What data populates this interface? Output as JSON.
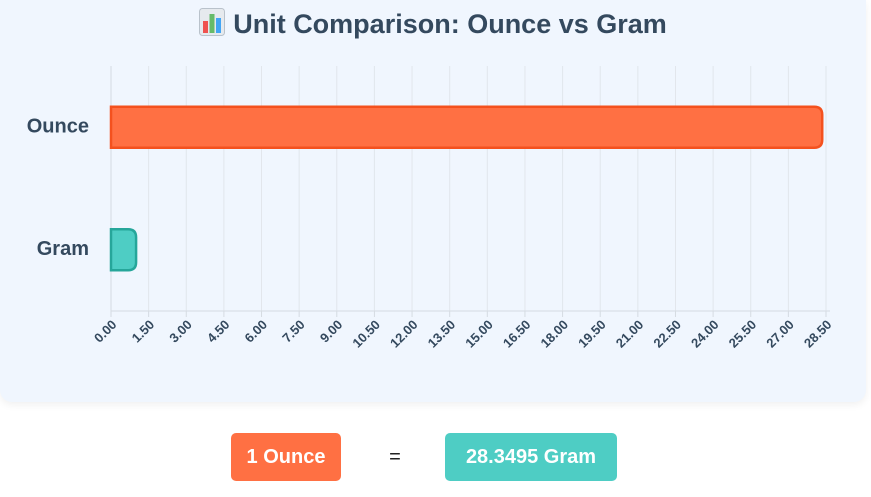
{
  "chart_data": {
    "type": "bar",
    "orientation": "horizontal",
    "title": "Unit Comparison: Ounce vs Gram",
    "title_icon": "bar-chart-icon",
    "categories": [
      "Ounce",
      "Gram"
    ],
    "values": [
      28.3495,
      1
    ],
    "colors": [
      "#ff7043",
      "#4ecdc4"
    ],
    "border_colors": [
      "#f4511e",
      "#26a69a"
    ],
    "xlim": [
      0,
      28.5
    ],
    "x_ticks": [
      "0.00",
      "1.50",
      "3.00",
      "4.50",
      "6.00",
      "7.50",
      "9.00",
      "10.50",
      "12.00",
      "13.50",
      "15.00",
      "16.50",
      "18.00",
      "19.50",
      "21.00",
      "22.50",
      "24.00",
      "25.50",
      "27.00",
      "28.50"
    ],
    "grid": true,
    "legend": "none"
  },
  "result": {
    "from_label": "1 Ounce",
    "equals": "=",
    "to_label": "28.3495 Gram",
    "from_color": "#ff7043",
    "to_color": "#4ecdc4"
  }
}
